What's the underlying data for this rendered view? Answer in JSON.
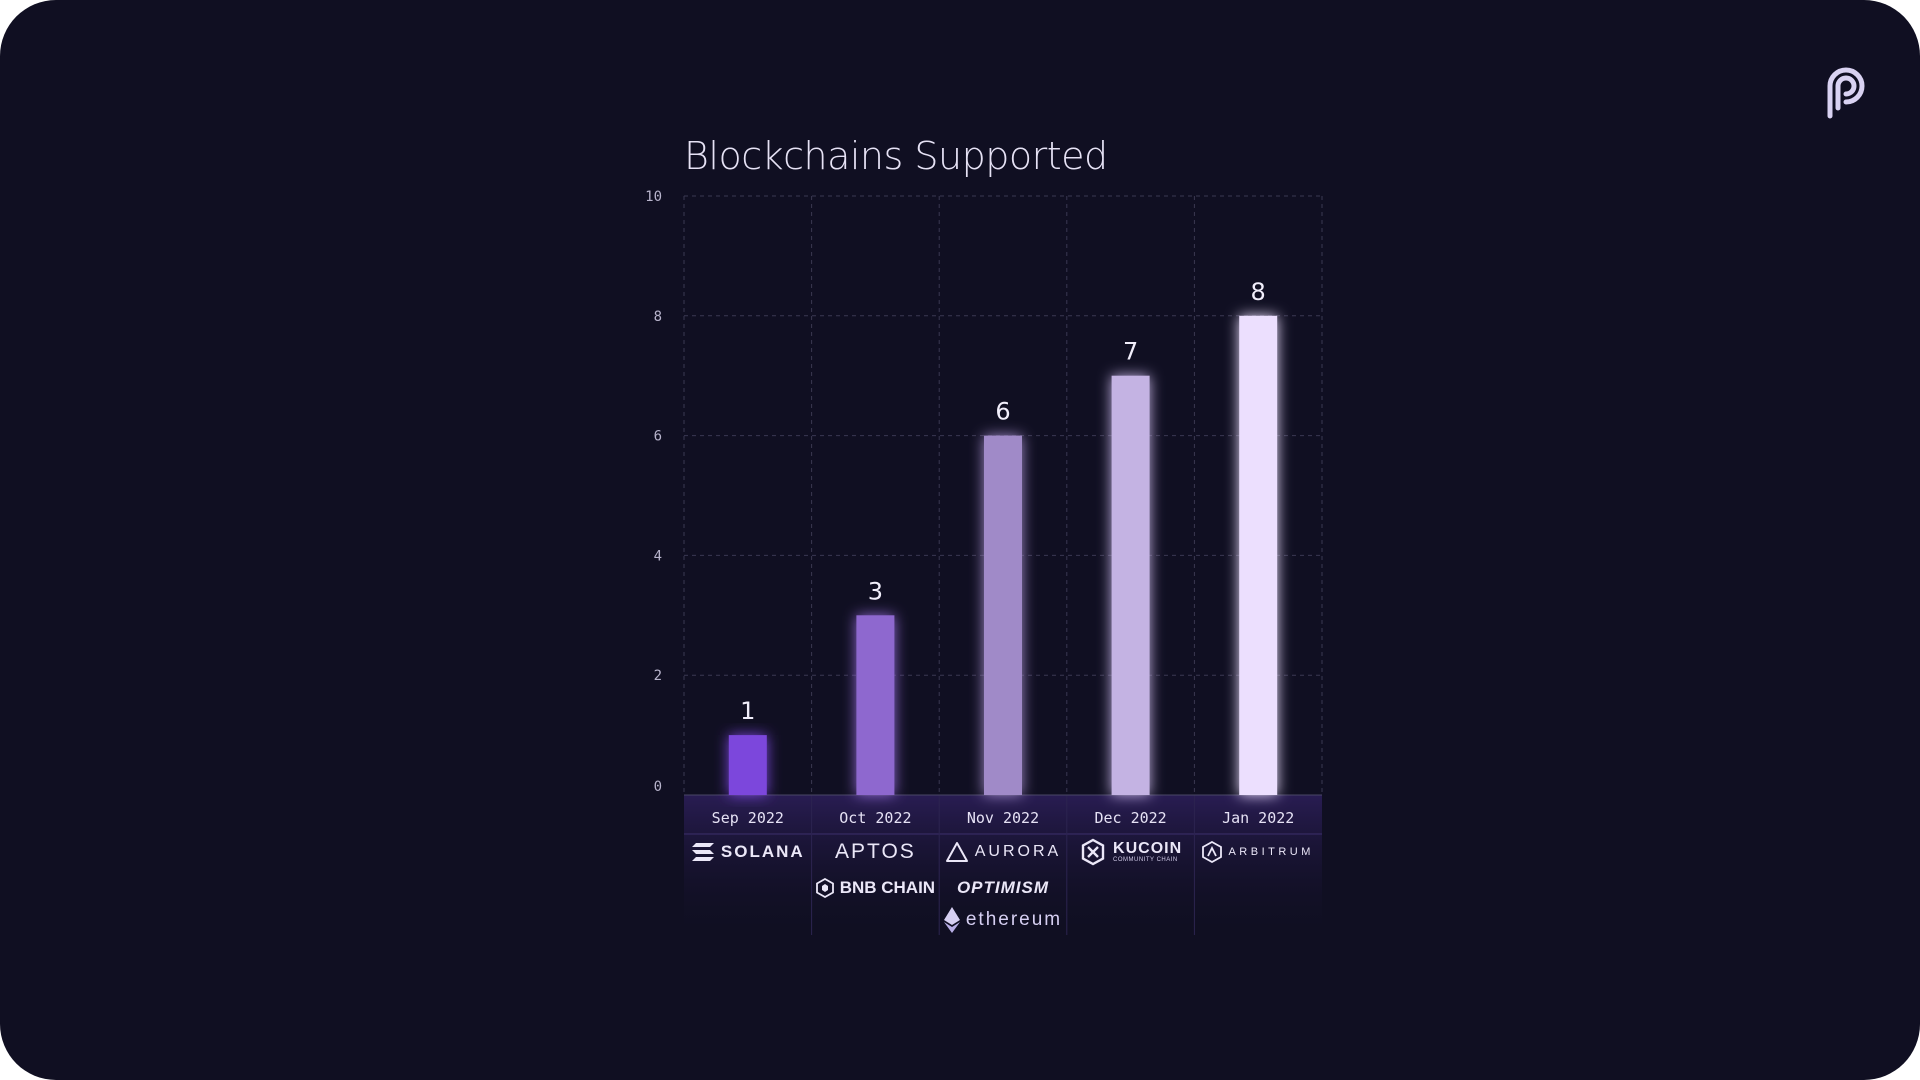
{
  "colors": {
    "background": "#100f22",
    "bars": [
      "#7b46dc",
      "#8e68cf",
      "#a08ac8",
      "#c4b3e3",
      "#ecdffe"
    ],
    "grid": "#3a3852",
    "text": "#e6e2f5"
  },
  "icons": {
    "brand": "pyth-logo-icon"
  },
  "chart_data": {
    "type": "bar",
    "title": "Blockchains Supported",
    "categories": [
      "Sep 2022",
      "Oct 2022",
      "Nov 2022",
      "Dec 2022",
      "Jan 2022"
    ],
    "values": [
      1,
      3,
      6,
      7,
      8
    ],
    "data_labels": [
      "1",
      "3",
      "6",
      "7",
      "8"
    ],
    "y_ticks": [
      "0",
      "2",
      "4",
      "6",
      "8",
      "10"
    ],
    "ylim": [
      0,
      10
    ],
    "xlabel": "",
    "ylabel": "",
    "grid": true,
    "legend": "none",
    "chains_added": [
      [
        {
          "name": "SOLANA",
          "icon": "solana-icon"
        }
      ],
      [
        {
          "name": "APTOS",
          "icon": "aptos-icon"
        },
        {
          "name": "BNB CHAIN",
          "icon": "bnb-chain-icon"
        }
      ],
      [
        {
          "name": "AURORA",
          "icon": "aurora-icon"
        },
        {
          "name": "OPTIMISM",
          "icon": "optimism-icon"
        },
        {
          "name": "ethereum",
          "icon": "ethereum-icon"
        }
      ],
      [
        {
          "name": "KUCOIN",
          "sub": "COMMUNITY CHAIN",
          "icon": "kucoin-icon"
        }
      ],
      [
        {
          "name": "ARBITRUM",
          "icon": "arbitrum-icon"
        }
      ]
    ]
  }
}
